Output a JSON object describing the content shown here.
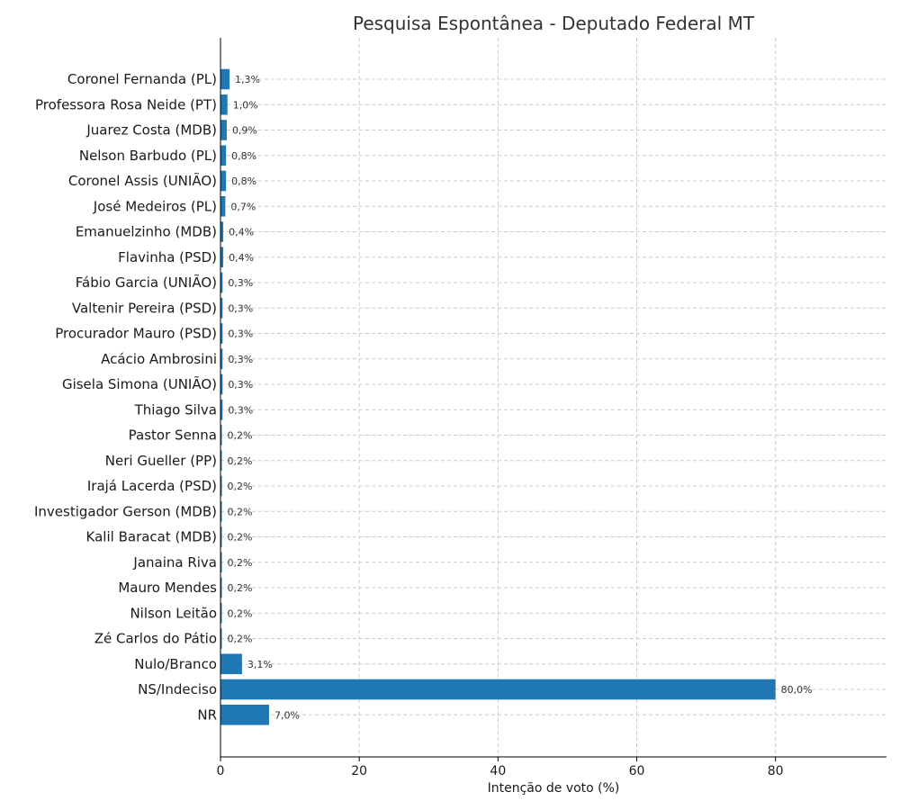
{
  "chart_data": {
    "type": "bar",
    "orientation": "horizontal",
    "title": "Pesquisa Espontânea - Deputado Federal MT",
    "xlabel": "Intenção de voto (%)",
    "ylabel": "",
    "xlim": [
      0,
      96
    ],
    "xticks": [
      0,
      20,
      40,
      60,
      80
    ],
    "grid": true,
    "bar_color": "#1f77b4",
    "categories": [
      "Coronel Fernanda (PL)",
      "Professora Rosa Neide (PT)",
      "Juarez Costa (MDB)",
      "Nelson Barbudo (PL)",
      "Coronel Assis (UNIÃO)",
      "José Medeiros (PL)",
      "Emanuelzinho (MDB)",
      "Flavinha (PSD)",
      "Fábio Garcia (UNIÃO)",
      "Valtenir Pereira (PSD)",
      "Procurador Mauro (PSD)",
      "Acácio Ambrosini",
      "Gisela Simona (UNIÃO)",
      "Thiago Silva",
      "Pastor Senna",
      "Neri Gueller (PP)",
      "Irajá Lacerda (PSD)",
      "Investigador Gerson (MDB)",
      "Kalil Baracat (MDB)",
      "Janaina Riva",
      "Mauro Mendes",
      "Nilson Leitão",
      "Zé Carlos do Pátio",
      "Nulo/Branco",
      "NS/Indeciso",
      "NR"
    ],
    "values": [
      1.3,
      1.0,
      0.9,
      0.8,
      0.8,
      0.7,
      0.4,
      0.4,
      0.3,
      0.3,
      0.3,
      0.3,
      0.3,
      0.3,
      0.2,
      0.2,
      0.2,
      0.2,
      0.2,
      0.2,
      0.2,
      0.2,
      0.2,
      3.1,
      80.0,
      7.0
    ],
    "value_labels": [
      "1,3%",
      "1,0%",
      "0,9%",
      "0,8%",
      "0,8%",
      "0,7%",
      "0,4%",
      "0,4%",
      "0,3%",
      "0,3%",
      "0,3%",
      "0,3%",
      "0,3%",
      "0,3%",
      "0,2%",
      "0,2%",
      "0,2%",
      "0,2%",
      "0,2%",
      "0,2%",
      "0,2%",
      "0,2%",
      "0,2%",
      "3,1%",
      "80,0%",
      "7,0%"
    ]
  }
}
